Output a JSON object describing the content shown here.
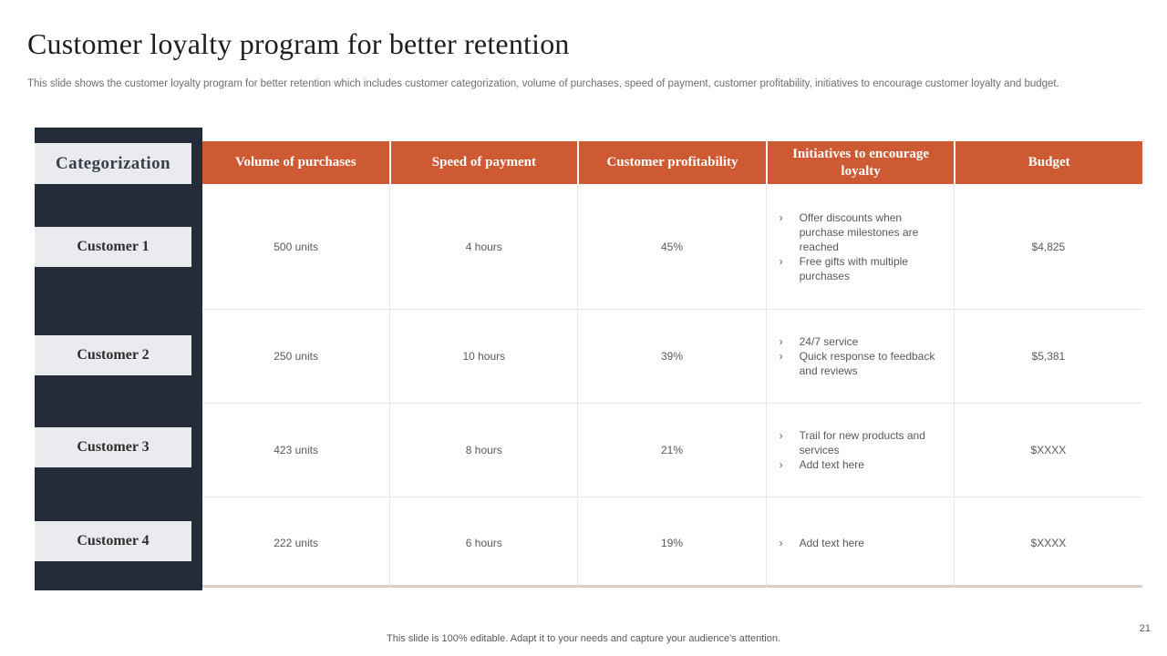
{
  "slide": {
    "title": "Customer loyalty program for better retention",
    "subtitle": "This slide shows the customer loyalty program for better retention which includes customer categorization, volume of purchases, speed of payment, customer profitability, initiatives to encourage customer loyalty and budget.",
    "footer": "This slide is 100% editable. Adapt it to your needs and capture your audience's attention.",
    "page_number": "21"
  },
  "table": {
    "categorization_label": "Categorization",
    "bullet_char": "›",
    "columns": [
      "Volume of purchases",
      "Speed of payment",
      "Customer profitability",
      "Initiatives to encourage loyalty",
      "Budget"
    ],
    "rows": [
      {
        "label": "Customer 1",
        "volume": "500 units",
        "speed": "4 hours",
        "profitability": "45%",
        "initiatives": [
          "Offer discounts when purchase milestones are reached",
          "Free gifts with multiple purchases"
        ],
        "budget": "$4,825"
      },
      {
        "label": "Customer 2",
        "volume": "250 units",
        "speed": "10 hours",
        "profitability": "39%",
        "initiatives": [
          "24/7 service",
          "Quick response to feedback and reviews"
        ],
        "budget": "$5,381"
      },
      {
        "label": "Customer 3",
        "volume": "423 units",
        "speed": "8 hours",
        "profitability": "21%",
        "initiatives": [
          "Trail for new products and services",
          "Add text here"
        ],
        "budget": "$XXXX"
      },
      {
        "label": "Customer 4",
        "volume": "222 units",
        "speed": "6 hours",
        "profitability": "19%",
        "initiatives": [
          "Add text here"
        ],
        "budget": "$XXXX"
      }
    ]
  },
  "colors": {
    "accent_orange": "#cd5a33",
    "dark_navy": "#242c3a",
    "label_band": "#e9ebee",
    "body_text": "#595959",
    "grid_border": "#e5e7e9",
    "table_bottom_border": "#dacec6"
  }
}
